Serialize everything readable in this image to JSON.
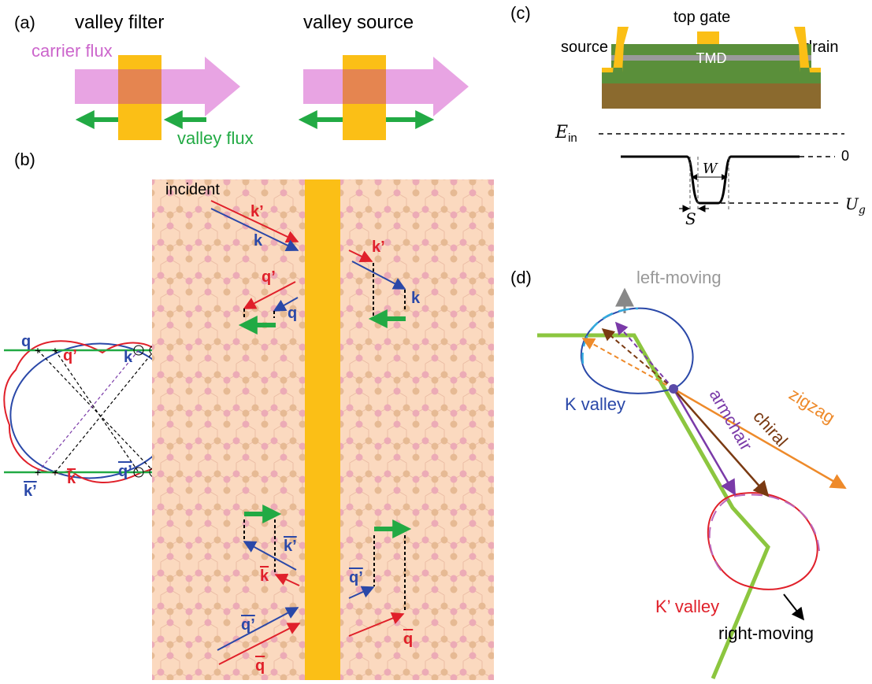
{
  "panel_a": {
    "label": "(a)",
    "filter_title": "valley filter",
    "source_title": "valley source",
    "carrier_flux": "carrier flux",
    "valley_flux": "valley flux",
    "colors": {
      "carrier": "#cc66cc",
      "barrier": "#fbbf16",
      "valley": "#22aa44"
    }
  },
  "panel_b": {
    "label": "(b)",
    "incident": "incident",
    "labels": {
      "k_prime": "k’",
      "k": "k",
      "q_prime": "q’",
      "q": "q",
      "kbar": "k",
      "kbar_prime": "k’",
      "qbar": "q",
      "qbar_prime": "q’"
    },
    "colors": {
      "red": "#e0202a",
      "blue": "#2a48a8",
      "green": "#22aa44",
      "substrate": "#fbd9bf",
      "barrier": "#fbbf16"
    }
  },
  "panel_c": {
    "label": "(c)",
    "top_gate": "top gate",
    "source": "source",
    "drain": "drain",
    "tmd": "TMD",
    "e_in": "E",
    "e_in_sub": "in",
    "zero": "0",
    "w": "W",
    "s": "S",
    "ug": "U",
    "ug_sub": "g",
    "colors": {
      "gate": "#fbbf16",
      "layer": "#5a8f3a",
      "substrate": "#8b6a2e",
      "tmd": "#9a9a9a"
    }
  },
  "panel_d": {
    "label": "(d)",
    "left_moving": "left-moving",
    "right_moving": "right-moving",
    "k_valley": "K valley",
    "kp_valley": "K’ valley",
    "armchair": "armchair",
    "chiral": "chiral",
    "zigzag": "zigzag",
    "colors": {
      "armchair": "#7a3aa8",
      "chiral": "#7a3a12",
      "zigzag": "#ee8a2a",
      "boundary": "#8cc63f",
      "kvalley": "#2a48a8",
      "kpvalley": "#e0202a",
      "dash_blue": "#33aadd",
      "dash_pink": "#bb66bb"
    }
  }
}
